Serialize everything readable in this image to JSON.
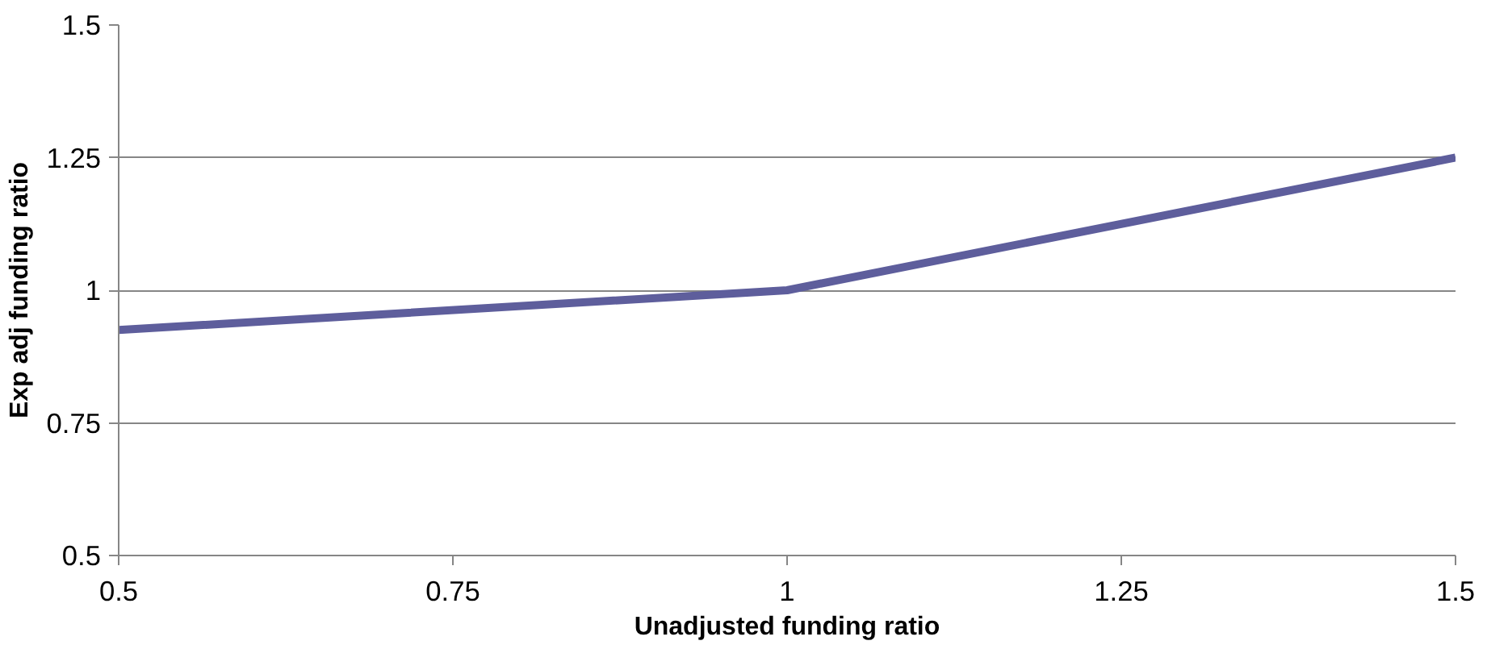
{
  "chart_data": {
    "type": "line",
    "xlabel": "Unadjusted funding ratio",
    "ylabel": "Exp adj funding ratio",
    "x": [
      0.5,
      1,
      1.5
    ],
    "series": [
      {
        "color": "#5e5e9c",
        "values": [
          0.925,
          1,
          1.25
        ]
      }
    ],
    "xlim": [
      0.5,
      1.5
    ],
    "xticks": [
      0.5,
      0.75,
      1,
      1.25,
      1.5
    ],
    "ylim": [
      0.5,
      1.5
    ],
    "yticks": [
      0.5,
      0.75,
      1,
      1.25,
      1.5
    ],
    "grid": "y",
    "marker": "none",
    "line_style": "solid"
  }
}
